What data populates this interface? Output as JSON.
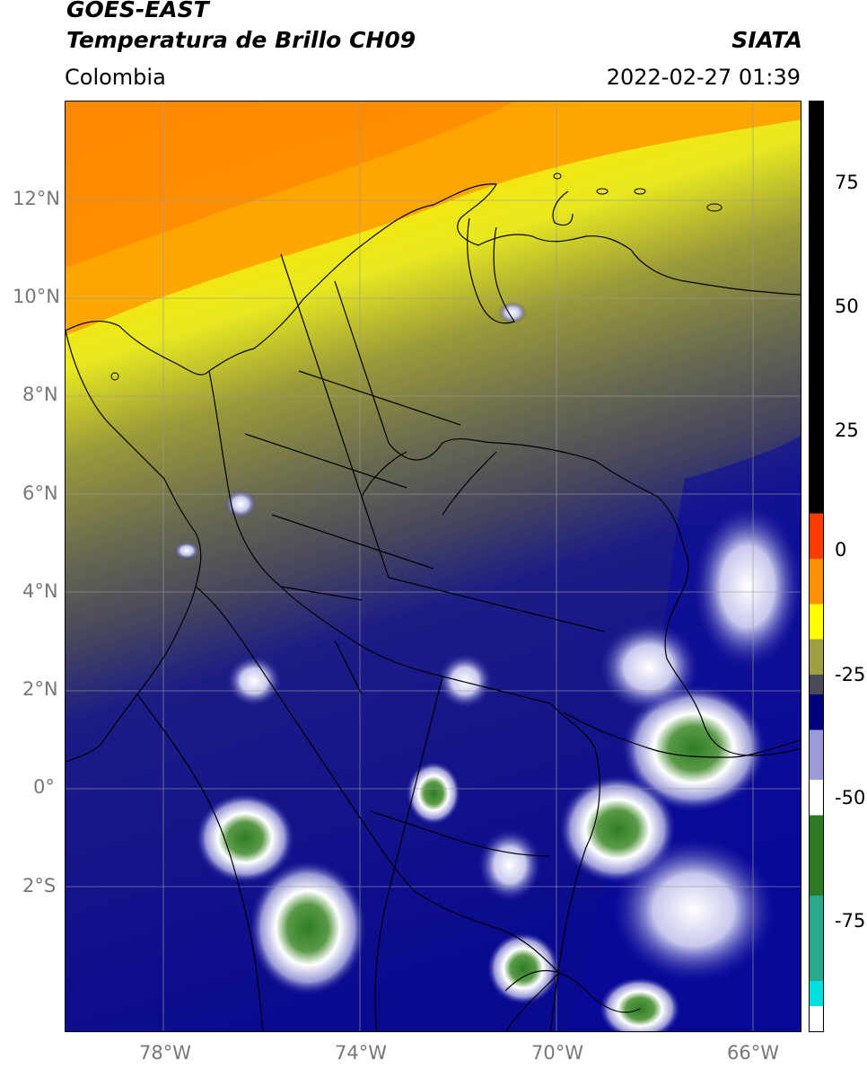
{
  "header": {
    "source": "GOES-EAST",
    "product": "Temperatura de Brillo CH09",
    "region": "Colombia",
    "agency": "SIATA",
    "datetime": "2022-02-27 01:39"
  },
  "map": {
    "lon_range": [
      -80.0,
      -65.0
    ],
    "lat_range": [
      -5.2,
      14.0
    ],
    "gridlines": true,
    "lat_ticks": [
      "12°N",
      "10°N",
      "8°N",
      "6°N",
      "4°N",
      "2°N",
      "0°",
      "2°S"
    ],
    "lon_ticks": [
      "78°W",
      "74°W",
      "70°W",
      "66°W"
    ],
    "colormap_stops": [
      "#ff7a00",
      "#ffb000",
      "#ffff00",
      "#c8c820",
      "#7e7e4a",
      "#4a4a58",
      "#1a1a7a",
      "#00007e",
      "#7a7ac8",
      "#ffffff",
      "#3a8a2a",
      "#1a9a7a"
    ],
    "coastline_color": "#000000"
  },
  "colorbar": {
    "ticks": [
      "75",
      "50",
      "25",
      "0",
      "-25",
      "-50",
      "-75"
    ],
    "range": [
      -95,
      90
    ],
    "segments": [
      {
        "from": 8,
        "to": 90,
        "color": "#000000"
      },
      {
        "from": -1,
        "to": 8,
        "color": "#ff3a00"
      },
      {
        "from": -10,
        "to": -1,
        "color": "#ff9000"
      },
      {
        "from": -17,
        "to": -10,
        "color": "#ffff00"
      },
      {
        "from": -24,
        "to": -17,
        "color": "#a0a040"
      },
      {
        "from": -28,
        "to": -24,
        "color": "#4a4a58"
      },
      {
        "from": -35,
        "to": -28,
        "color": "#00007e"
      },
      {
        "from": -45,
        "to": -35,
        "color": "#9a9ad8"
      },
      {
        "from": -52,
        "to": -45,
        "color": "#ffffff"
      },
      {
        "from": -68,
        "to": -52,
        "color": "#2e7a22"
      },
      {
        "from": -85,
        "to": -68,
        "color": "#2aa88a"
      },
      {
        "from": -90,
        "to": -85,
        "color": "#00e0e0"
      },
      {
        "from": -95,
        "to": -90,
        "color": "#ffffff"
      }
    ]
  }
}
